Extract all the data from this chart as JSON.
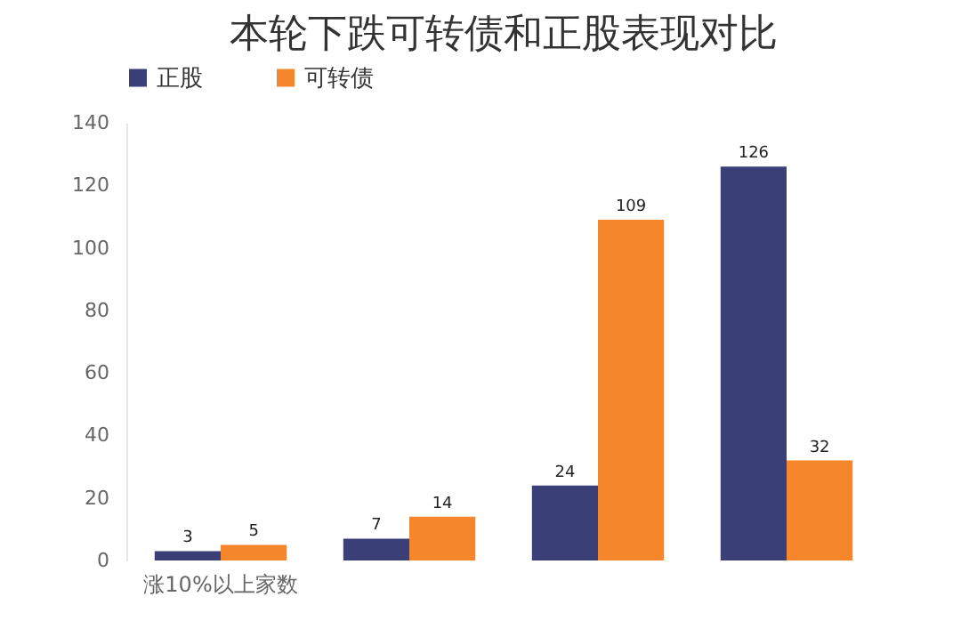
{
  "chart_data": {
    "type": "bar",
    "title": "本轮下跌可转债和正股表现对比",
    "categories": [
      "涨10%以上家数",
      null,
      null,
      null
    ],
    "series": [
      {
        "name": "正股",
        "color": "#3b3f78",
        "values": [
          3,
          7,
          24,
          126
        ]
      },
      {
        "name": "可转债",
        "color": "#f5862b",
        "values": [
          5,
          14,
          109,
          32
        ]
      }
    ],
    "ylim": [
      0,
      140
    ],
    "yticks": [
      0,
      20,
      40,
      60,
      80,
      100,
      120,
      140
    ],
    "grid": false,
    "legend": "top",
    "data_labels": true
  }
}
